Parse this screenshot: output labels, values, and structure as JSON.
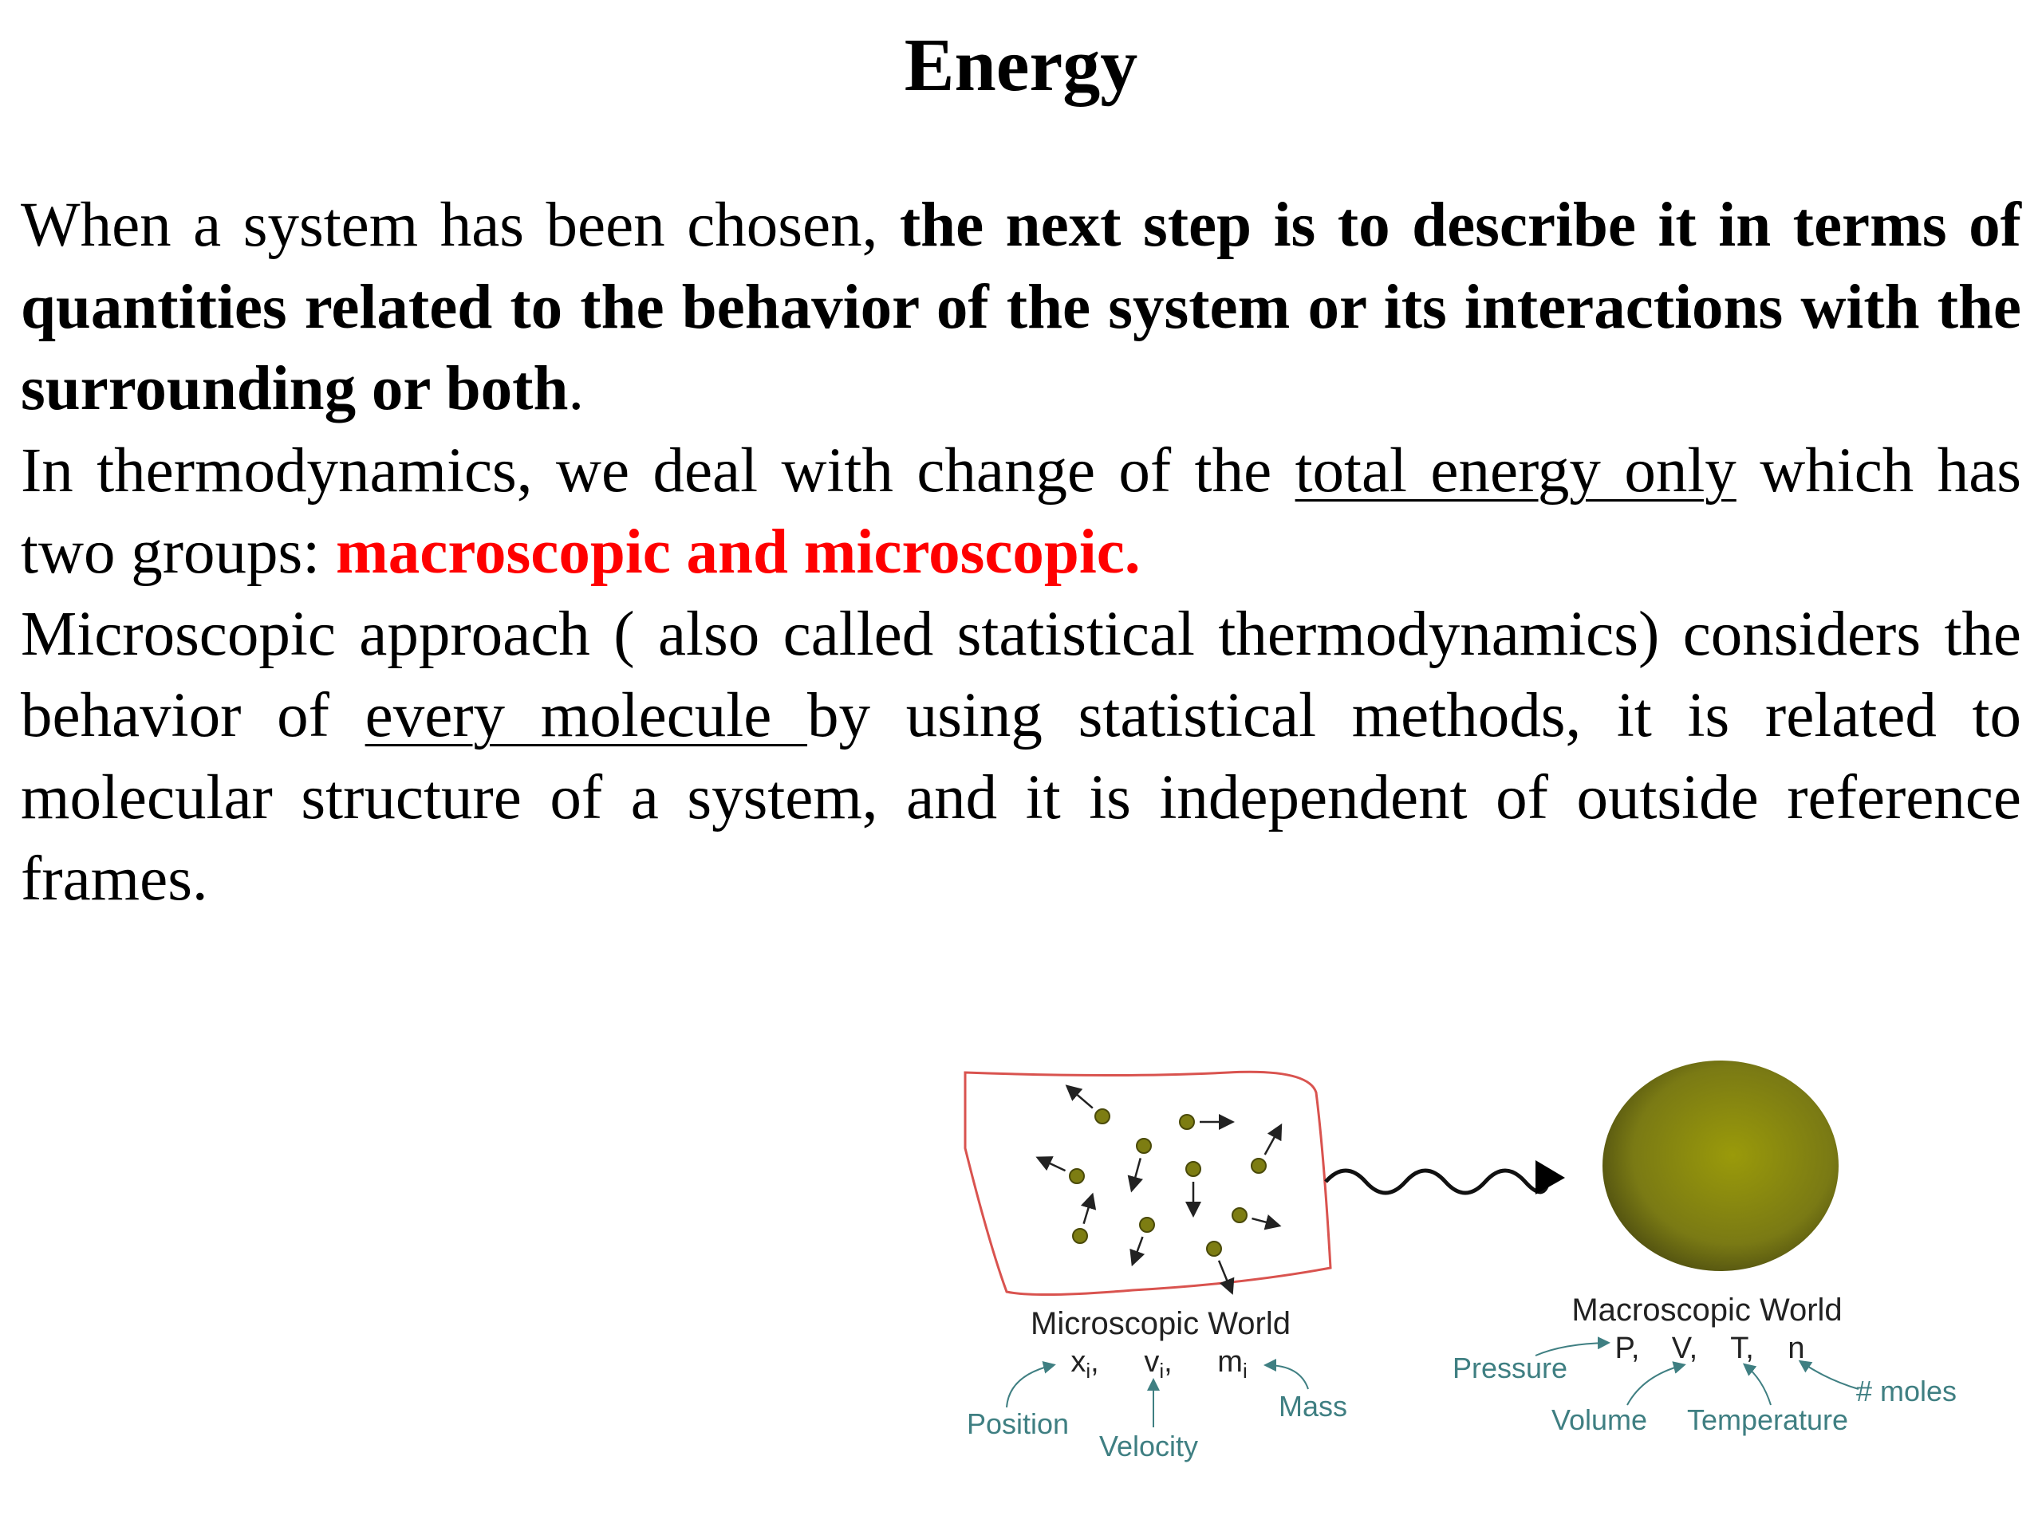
{
  "title": "Energy",
  "paragraphs": {
    "p1": {
      "normal": "When a system has been chosen, ",
      "bold": "the next step is to describe it in terms of quantities related to the behavior of the system or its interactions with the surrounding or both",
      "end": "."
    },
    "p2": {
      "start": "In thermodynamics, we deal with change of the ",
      "underlined": "total energy only",
      "middle": " which has two groups: ",
      "red_bold": "macroscopic and microscopic."
    },
    "p3": {
      "start": "Microscopic approach ( also called statistical thermodynamics) considers the behavior of ",
      "underlined": "every molecule ",
      "end": "by using statistical methods, it is related to molecular structure of a system, and it is independent of outside reference frames."
    }
  },
  "diagram": {
    "colors": {
      "box": "#d9534f",
      "molecule": "#7d7d12",
      "label": "#3f7f82",
      "sphere": "#8c8c10"
    },
    "micro": {
      "title": "Microscopic World",
      "symbols": [
        {
          "base": "x",
          "sub": "i",
          "sep": ","
        },
        {
          "base": "v",
          "sub": "i",
          "sep": ","
        },
        {
          "base": "m",
          "sub": "i",
          "sep": ""
        }
      ],
      "labels": {
        "position": "Position",
        "velocity": "Velocity",
        "mass": "Mass"
      }
    },
    "macro": {
      "title": "Macroscopic World",
      "symbols": [
        "P,",
        "V,",
        "T,",
        "n"
      ],
      "labels": {
        "pressure": "Pressure",
        "volume": "Volume",
        "temperature": "Temperature",
        "moles": "# moles"
      }
    }
  }
}
